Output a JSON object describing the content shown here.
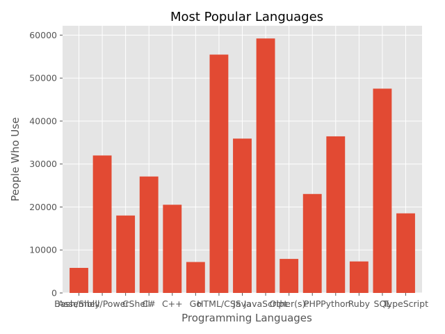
{
  "chart_data": {
    "type": "bar",
    "title": "Most Popular Languages",
    "xlabel": "Programming Languages",
    "ylabel": "People Who Use",
    "categories": [
      "Assembly",
      "Bash/Shell/PowerShell",
      "C",
      "C#",
      "C++",
      "Go",
      "HTML/CSS",
      "Java",
      "JavaScript",
      "Other(s):",
      "PHP",
      "Python",
      "Ruby",
      "SQL",
      "TypeScript"
    ],
    "values": [
      5833,
      31991,
      18017,
      27097,
      20524,
      7201,
      55466,
      35917,
      59219,
      7920,
      23030,
      36443,
      7331,
      47544,
      18523
    ],
    "ylim": [
      0,
      62180
    ],
    "yticks": [
      0,
      10000,
      20000,
      30000,
      40000,
      50000,
      60000
    ],
    "grid": true,
    "bar_color": "#E24A33",
    "background": "#E5E5E5",
    "grid_color": "#FFFFFF"
  }
}
